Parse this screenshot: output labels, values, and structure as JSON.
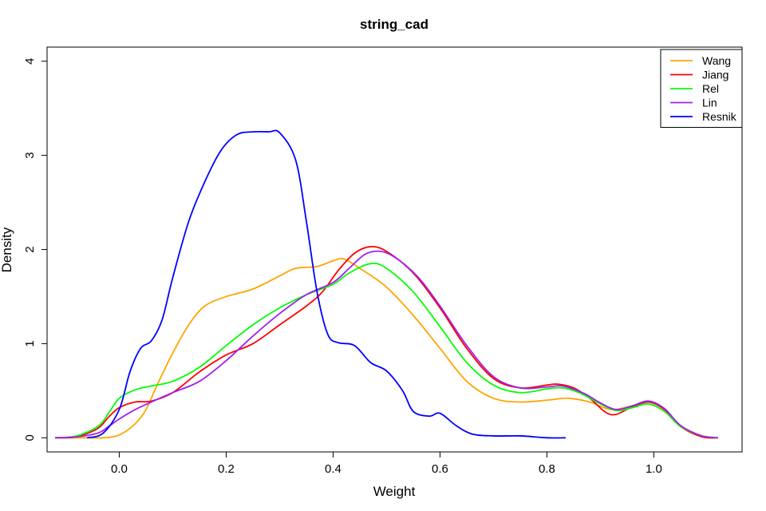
{
  "chart_data": {
    "type": "line",
    "title": "string_cad",
    "xlabel": "Weight",
    "ylabel": "Density",
    "xlim": [
      -0.135,
      1.165
    ],
    "ylim": [
      -0.15,
      4.15
    ],
    "xticks": [
      0.0,
      0.2,
      0.4,
      0.6,
      0.8,
      1.0
    ],
    "xtick_labels": [
      "0.0",
      "0.2",
      "0.4",
      "0.6",
      "0.8",
      "1.0"
    ],
    "yticks": [
      0,
      1,
      2,
      3,
      4
    ],
    "ytick_labels": [
      "0",
      "1",
      "2",
      "3",
      "4"
    ],
    "grid": false,
    "legend_position": "top-right",
    "series": [
      {
        "name": "Wang",
        "color": "#FFA500",
        "points": [
          [
            -0.12,
            0.0
          ],
          [
            -0.06,
            0.0
          ],
          [
            -0.03,
            0.0
          ],
          [
            0.0,
            0.03
          ],
          [
            0.03,
            0.15
          ],
          [
            0.05,
            0.3
          ],
          [
            0.07,
            0.55
          ],
          [
            0.1,
            0.9
          ],
          [
            0.13,
            1.2
          ],
          [
            0.16,
            1.4
          ],
          [
            0.2,
            1.5
          ],
          [
            0.25,
            1.58
          ],
          [
            0.3,
            1.72
          ],
          [
            0.33,
            1.8
          ],
          [
            0.37,
            1.82
          ],
          [
            0.4,
            1.88
          ],
          [
            0.42,
            1.9
          ],
          [
            0.45,
            1.8
          ],
          [
            0.5,
            1.6
          ],
          [
            0.55,
            1.3
          ],
          [
            0.6,
            0.95
          ],
          [
            0.65,
            0.6
          ],
          [
            0.7,
            0.42
          ],
          [
            0.75,
            0.38
          ],
          [
            0.8,
            0.4
          ],
          [
            0.84,
            0.42
          ],
          [
            0.88,
            0.38
          ],
          [
            0.92,
            0.3
          ],
          [
            0.96,
            0.34
          ],
          [
            0.99,
            0.36
          ],
          [
            1.02,
            0.28
          ],
          [
            1.05,
            0.12
          ],
          [
            1.08,
            0.03
          ],
          [
            1.12,
            0.0
          ]
        ]
      },
      {
        "name": "Jiang",
        "color": "#FF0000",
        "points": [
          [
            -0.12,
            0.0
          ],
          [
            -0.08,
            0.01
          ],
          [
            -0.04,
            0.1
          ],
          [
            -0.02,
            0.22
          ],
          [
            0.0,
            0.32
          ],
          [
            0.03,
            0.38
          ],
          [
            0.06,
            0.39
          ],
          [
            0.1,
            0.48
          ],
          [
            0.15,
            0.7
          ],
          [
            0.2,
            0.88
          ],
          [
            0.25,
            1.0
          ],
          [
            0.3,
            1.2
          ],
          [
            0.35,
            1.4
          ],
          [
            0.38,
            1.55
          ],
          [
            0.41,
            1.78
          ],
          [
            0.44,
            1.96
          ],
          [
            0.47,
            2.03
          ],
          [
            0.5,
            1.98
          ],
          [
            0.55,
            1.75
          ],
          [
            0.6,
            1.38
          ],
          [
            0.65,
            0.95
          ],
          [
            0.7,
            0.63
          ],
          [
            0.75,
            0.53
          ],
          [
            0.8,
            0.56
          ],
          [
            0.82,
            0.57
          ],
          [
            0.85,
            0.53
          ],
          [
            0.88,
            0.42
          ],
          [
            0.91,
            0.27
          ],
          [
            0.93,
            0.25
          ],
          [
            0.96,
            0.33
          ],
          [
            0.99,
            0.38
          ],
          [
            1.02,
            0.3
          ],
          [
            1.05,
            0.12
          ],
          [
            1.09,
            0.01
          ],
          [
            1.12,
            0.0
          ]
        ]
      },
      {
        "name": "Rel",
        "color": "#00FF00",
        "points": [
          [
            -0.12,
            0.0
          ],
          [
            -0.08,
            0.02
          ],
          [
            -0.04,
            0.12
          ],
          [
            -0.02,
            0.26
          ],
          [
            0.0,
            0.42
          ],
          [
            0.03,
            0.51
          ],
          [
            0.06,
            0.55
          ],
          [
            0.1,
            0.6
          ],
          [
            0.15,
            0.75
          ],
          [
            0.2,
            0.98
          ],
          [
            0.25,
            1.2
          ],
          [
            0.3,
            1.38
          ],
          [
            0.35,
            1.52
          ],
          [
            0.4,
            1.63
          ],
          [
            0.43,
            1.75
          ],
          [
            0.47,
            1.85
          ],
          [
            0.5,
            1.8
          ],
          [
            0.55,
            1.55
          ],
          [
            0.6,
            1.18
          ],
          [
            0.65,
            0.8
          ],
          [
            0.7,
            0.56
          ],
          [
            0.75,
            0.48
          ],
          [
            0.8,
            0.52
          ],
          [
            0.83,
            0.53
          ],
          [
            0.86,
            0.48
          ],
          [
            0.9,
            0.36
          ],
          [
            0.93,
            0.29
          ],
          [
            0.96,
            0.32
          ],
          [
            0.99,
            0.36
          ],
          [
            1.02,
            0.28
          ],
          [
            1.05,
            0.12
          ],
          [
            1.09,
            0.02
          ],
          [
            1.12,
            0.0
          ]
        ]
      },
      {
        "name": "Lin",
        "color": "#A020F0",
        "points": [
          [
            -0.12,
            0.0
          ],
          [
            -0.08,
            0.01
          ],
          [
            -0.04,
            0.05
          ],
          [
            -0.02,
            0.12
          ],
          [
            0.0,
            0.2
          ],
          [
            0.03,
            0.3
          ],
          [
            0.06,
            0.38
          ],
          [
            0.1,
            0.48
          ],
          [
            0.15,
            0.6
          ],
          [
            0.2,
            0.82
          ],
          [
            0.25,
            1.08
          ],
          [
            0.3,
            1.32
          ],
          [
            0.35,
            1.52
          ],
          [
            0.4,
            1.65
          ],
          [
            0.43,
            1.8
          ],
          [
            0.46,
            1.95
          ],
          [
            0.49,
            1.98
          ],
          [
            0.52,
            1.9
          ],
          [
            0.56,
            1.7
          ],
          [
            0.6,
            1.4
          ],
          [
            0.65,
            0.98
          ],
          [
            0.7,
            0.65
          ],
          [
            0.75,
            0.53
          ],
          [
            0.8,
            0.54
          ],
          [
            0.83,
            0.55
          ],
          [
            0.87,
            0.47
          ],
          [
            0.9,
            0.37
          ],
          [
            0.93,
            0.3
          ],
          [
            0.96,
            0.34
          ],
          [
            0.99,
            0.39
          ],
          [
            1.02,
            0.31
          ],
          [
            1.05,
            0.13
          ],
          [
            1.09,
            0.02
          ],
          [
            1.12,
            0.0
          ]
        ]
      },
      {
        "name": "Resnik",
        "color": "#0000FF",
        "points": [
          [
            -0.06,
            0.0
          ],
          [
            -0.03,
            0.05
          ],
          [
            0.0,
            0.3
          ],
          [
            0.02,
            0.7
          ],
          [
            0.04,
            0.95
          ],
          [
            0.06,
            1.03
          ],
          [
            0.08,
            1.25
          ],
          [
            0.1,
            1.7
          ],
          [
            0.13,
            2.3
          ],
          [
            0.16,
            2.72
          ],
          [
            0.19,
            3.05
          ],
          [
            0.22,
            3.22
          ],
          [
            0.25,
            3.25
          ],
          [
            0.28,
            3.25
          ],
          [
            0.3,
            3.24
          ],
          [
            0.33,
            2.95
          ],
          [
            0.35,
            2.3
          ],
          [
            0.37,
            1.55
          ],
          [
            0.39,
            1.1
          ],
          [
            0.41,
            1.01
          ],
          [
            0.44,
            0.98
          ],
          [
            0.47,
            0.8
          ],
          [
            0.5,
            0.71
          ],
          [
            0.53,
            0.5
          ],
          [
            0.55,
            0.28
          ],
          [
            0.58,
            0.23
          ],
          [
            0.6,
            0.26
          ],
          [
            0.63,
            0.13
          ],
          [
            0.66,
            0.04
          ],
          [
            0.7,
            0.02
          ],
          [
            0.75,
            0.02
          ],
          [
            0.8,
            0.0
          ],
          [
            0.835,
            0.0
          ]
        ]
      }
    ]
  }
}
